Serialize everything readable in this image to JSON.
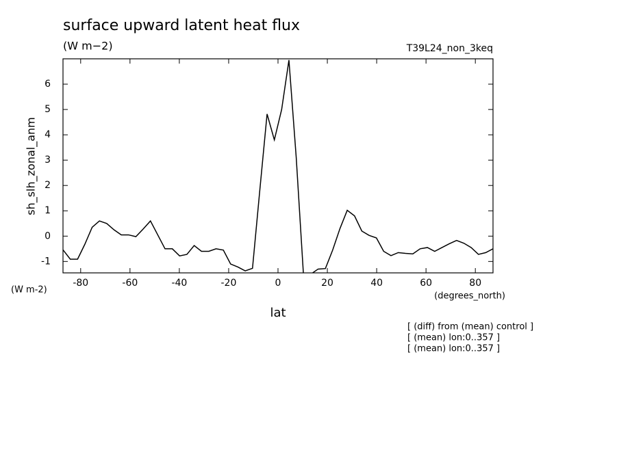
{
  "chart_data": {
    "type": "line",
    "title": "surface upward latent heat flux",
    "subtitle": "(W m−2)",
    "run_label": "T39L24_non_3keq",
    "ylabel": "sh_slh_zonal_anm",
    "yunits": "(W m-2)",
    "xlabel": "lat",
    "xunits": "(degrees_north)",
    "notes": [
      "[ (diff) from (mean) control ]",
      "[ (mean) lon:0..357 ]",
      "[ (mean) lon:0..357 ]"
    ],
    "color": "#000000",
    "xlim": [
      -87.16,
      87.16
    ],
    "ylim": [
      -1.45,
      7.0
    ],
    "xticks": [
      -80,
      -60,
      -40,
      -20,
      0,
      20,
      40,
      60,
      80
    ],
    "yticks": [
      -1,
      0,
      1,
      2,
      3,
      4,
      5,
      6
    ],
    "x": [
      -87.16,
      -84.21,
      -81.25,
      -78.3,
      -75.34,
      -72.39,
      -69.43,
      -66.48,
      -63.52,
      -60.57,
      -57.61,
      -54.66,
      -51.71,
      -48.75,
      -45.8,
      -42.84,
      -39.89,
      -36.93,
      -33.98,
      -31.02,
      -28.07,
      -25.12,
      -22.16,
      -19.21,
      -16.25,
      -13.3,
      -10.34,
      -7.39,
      -4.43,
      -1.48,
      1.48,
      4.43,
      7.39,
      10.34,
      13.3,
      16.25,
      19.21,
      22.16,
      25.12,
      28.07,
      31.02,
      33.98,
      36.93,
      39.89,
      42.84,
      45.8,
      48.75,
      51.71,
      54.66,
      57.61,
      60.57,
      63.52,
      66.48,
      69.43,
      72.39,
      75.34,
      78.3,
      81.25,
      84.21,
      87.16
    ],
    "values": [
      -0.54,
      -0.91,
      -0.91,
      -0.32,
      0.35,
      0.6,
      0.5,
      0.25,
      0.05,
      0.05,
      -0.02,
      0.28,
      0.6,
      0.05,
      -0.5,
      -0.5,
      -0.78,
      -0.72,
      -0.37,
      -0.6,
      -0.6,
      -0.5,
      -0.55,
      -1.1,
      -1.22,
      -1.37,
      -1.27,
      1.8,
      4.82,
      3.8,
      5.0,
      6.95,
      3.1,
      -1.55,
      -1.5,
      -1.3,
      -1.28,
      -0.55,
      0.3,
      1.02,
      0.8,
      0.2,
      0.03,
      -0.07,
      -0.6,
      -0.77,
      -0.65,
      -0.68,
      -0.7,
      -0.5,
      -0.45,
      -0.6,
      -0.45,
      -0.3,
      -0.17,
      -0.28,
      -0.45,
      -0.72,
      -0.65,
      -0.5
    ]
  }
}
